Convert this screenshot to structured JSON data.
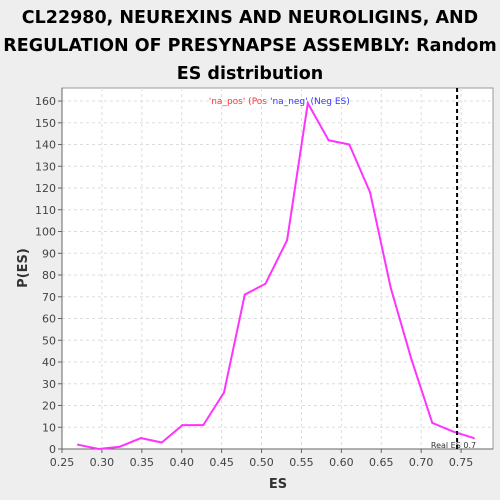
{
  "chart_data": {
    "type": "line",
    "title_lines": [
      "CL22980, NEUREXINS AND NEUROLIGINS, AND",
      "REGULATION OF PRESYNAPSE ASSEMBLY: Random",
      "ES distribution"
    ],
    "xlabel": "ES",
    "ylabel": "P(ES)",
    "xlim": [
      0.25,
      0.79
    ],
    "ylim": [
      0,
      166
    ],
    "xticks": [
      0.25,
      0.3,
      0.35,
      0.4,
      0.45,
      0.5,
      0.55,
      0.6,
      0.65,
      0.7,
      0.75
    ],
    "xtick_labels": [
      "0.25",
      "0.30",
      "0.35",
      "0.40",
      "0.45",
      "0.50",
      "0.55",
      "0.60",
      "0.65",
      "0.70",
      "0.75"
    ],
    "yticks": [
      0,
      10,
      20,
      30,
      40,
      50,
      60,
      70,
      80,
      90,
      100,
      110,
      120,
      130,
      140,
      150,
      160
    ],
    "ytick_labels": [
      "0",
      "10",
      "20",
      "30",
      "40",
      "50",
      "60",
      "70",
      "80",
      "90",
      "100",
      "110",
      "120",
      "130",
      "140",
      "150",
      "160"
    ],
    "grid": true,
    "series": [
      {
        "color": "#ff33ff",
        "x": [
          0.27,
          0.296,
          0.322,
          0.349,
          0.375,
          0.401,
          0.427,
          0.453,
          0.479,
          0.505,
          0.532,
          0.558,
          0.584,
          0.61,
          0.636,
          0.662,
          0.688,
          0.714,
          0.74,
          0.766
        ],
        "y": [
          2,
          0,
          1,
          5,
          3,
          11,
          11,
          26,
          71,
          76,
          96,
          159,
          142,
          140,
          118,
          74,
          41,
          12,
          8,
          5
        ]
      }
    ],
    "legend": {
      "placement": "top-center",
      "entries": [
        {
          "label": "'na_pos' (Pos",
          "color": "#ff3333"
        },
        {
          "label": "'na_neg' (Neg ES)",
          "color": "#3333ff"
        }
      ]
    },
    "reference_line": {
      "x": 0.745,
      "label": "Real ES 0.7",
      "style": "dashed",
      "color": "#000000"
    }
  }
}
